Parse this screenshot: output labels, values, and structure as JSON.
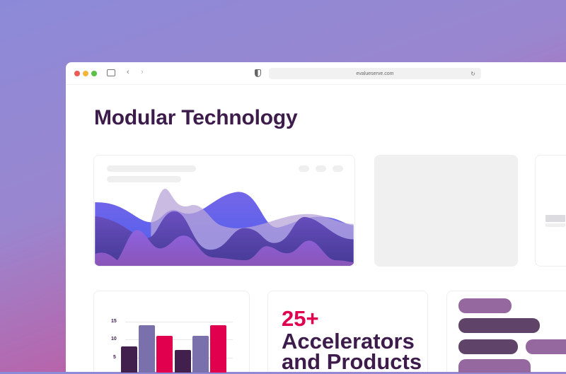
{
  "browser": {
    "url": "evalueserve.com",
    "icons": [
      "close-dot",
      "minimize-dot",
      "maximize-dot",
      "sidebar-icon",
      "back-icon",
      "forward-icon",
      "shield-icon",
      "reload-icon"
    ]
  },
  "page": {
    "title": "Modular Technology"
  },
  "stat": {
    "value": "25+",
    "line1": "Accelerators",
    "line2": "and Products"
  },
  "colors": {
    "accent": "#e0004d",
    "title": "#3d1c4c",
    "bar1": "#42204d",
    "bar2": "#7a70ab",
    "bar3": "#e0004d",
    "pill_light": "#9569a0",
    "pill_dark": "#5f4368"
  },
  "chart_data": {
    "type": "bar",
    "categories": [
      "",
      ""
    ],
    "yticks": [
      5,
      10,
      15
    ],
    "ylim": [
      0,
      15
    ],
    "series": [
      {
        "values": [
          8,
          7
        ]
      },
      {
        "values": [
          14,
          11
        ]
      },
      {
        "values": [
          11,
          14
        ]
      }
    ]
  }
}
